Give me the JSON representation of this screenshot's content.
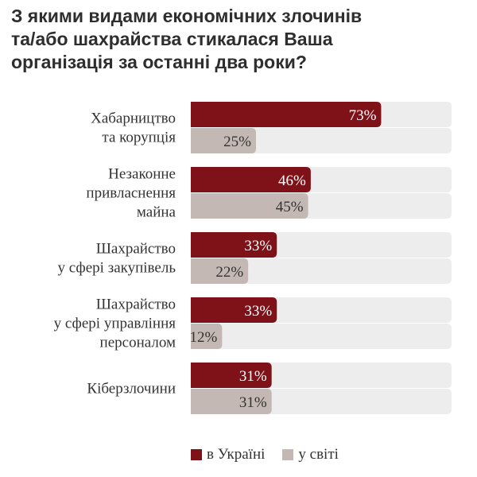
{
  "title_lines": [
    "З якими видами економічних злочинів",
    "та/або шахрайства стикалася Ваша",
    "організація за останні два роки?"
  ],
  "colors": {
    "ukraine": "#7f1119",
    "world": "#c3b8b3",
    "track": "#ededed",
    "ukraine_text": "#ffffff",
    "world_text": "#333333"
  },
  "legend": {
    "ukraine": "в Україні",
    "world": "у світі"
  },
  "chart_data": {
    "type": "bar",
    "orientation": "horizontal",
    "categories": [
      [
        "Хабарництво",
        "та корупція"
      ],
      [
        "Незаконне",
        "привласнення",
        "майна"
      ],
      [
        "Шахрайство",
        "у сфері закупівель"
      ],
      [
        "Шахрайство",
        "у сфері управління",
        "персоналом"
      ],
      [
        "Кіберзлочини"
      ]
    ],
    "series": [
      {
        "name": "в Україні",
        "values": [
          73,
          46,
          33,
          33,
          31
        ],
        "labels": [
          "73%",
          "46%",
          "33%",
          "33%",
          "31%"
        ]
      },
      {
        "name": "у світі",
        "values": [
          25,
          45,
          22,
          12,
          31
        ],
        "labels": [
          "25%",
          "45%",
          "22%",
          "12%",
          "31%"
        ]
      }
    ],
    "xlim": [
      0,
      100
    ],
    "unit": "%",
    "grid": false,
    "legend_position": "bottom"
  }
}
